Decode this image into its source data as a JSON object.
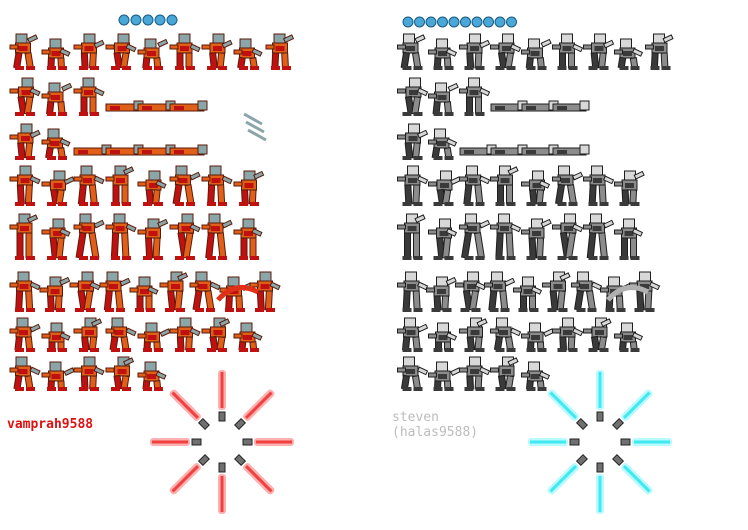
{
  "credits": {
    "left_author": "vamprah9588",
    "right_name": "steven",
    "right_alias": "(halas9588)"
  },
  "palette": {
    "left_body_orange": "#e0601a",
    "left_body_red": "#c01010",
    "left_armor_teal": "#8aa6a8",
    "left_dark": "#5a1a0a",
    "left_credit": "#dd1111",
    "right_light": "#d8d8d8",
    "right_mid": "#8c8c8c",
    "right_dark": "#3a3a3a",
    "right_credit": "#bcbcbc",
    "saber_red": "#f04040",
    "saber_red_glow": "#ffb0b0",
    "saber_cyan": "#40e8f0",
    "saber_cyan_glow": "#b8faff",
    "icon_blue": "#4aa8d8",
    "hilt": "#707070"
  },
  "sheets": [
    {
      "name": "left-sheet",
      "scheme": "color",
      "row_frames": [
        9,
        6,
        6,
        8,
        8,
        9,
        8,
        5
      ]
    },
    {
      "name": "right-sheet",
      "scheme": "gray",
      "row_frames": [
        9,
        6,
        6,
        8,
        8,
        9,
        8,
        5
      ]
    }
  ],
  "icons": {
    "left_count": 5,
    "right_count": 10
  },
  "sabers": {
    "left_color": "red",
    "right_color": "cyan",
    "count": 8
  }
}
